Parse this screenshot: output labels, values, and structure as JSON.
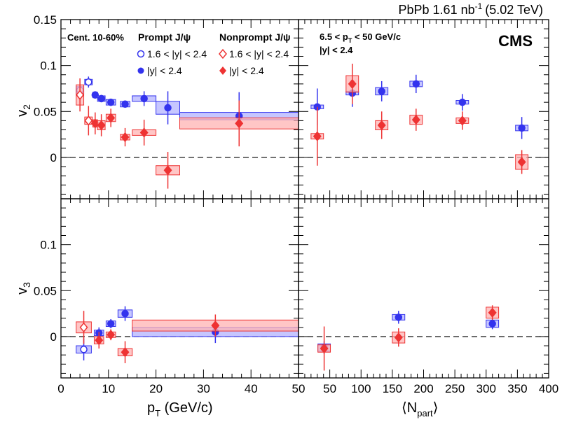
{
  "header": {
    "collision": "PbPb 1.61 nb",
    "lumi_exp": "-1",
    "energy": "(5.02 TeV)"
  },
  "experiment": "CMS",
  "legend": {
    "centrality": "Cent. 10-60%",
    "prompt_title": "Prompt J/ψ",
    "nonprompt_title": "Nonprompt J/ψ",
    "forward_label": "1.6 < |y| < 2.4",
    "full_label": "|y| < 2.4"
  },
  "right_cuts": {
    "pt_line_pre": "6.5 < p",
    "pt_sub": "T",
    "pt_line_post": " < 50 GeV/c",
    "y_line": "|y| < 2.4"
  },
  "axis_labels": {
    "v2_main": "v",
    "v2_sub": "2",
    "v3_main": "v",
    "v3_sub": "3",
    "pt_main": "p",
    "pt_sub": "T",
    "pt_rest": " (GeV/c)",
    "npart_left": "⟨N",
    "npart_sub": "part",
    "npart_right": "⟩"
  },
  "colors": {
    "prompt": "#3333ee",
    "nonprompt": "#ee3333",
    "prompt_fill": "#b3b3ff",
    "nonprompt_fill": "#ffb3b3"
  },
  "chart_data": {
    "type": "scatter",
    "y_ranges": {
      "v2": [
        -0.045,
        0.15
      ],
      "v3": [
        -0.045,
        0.15
      ]
    },
    "y_ticks": [
      0,
      0.05,
      0.1,
      0.15
    ],
    "y_tick_labels": [
      "0",
      "0.05",
      "0.1",
      "0.15"
    ],
    "x_ranges": {
      "pt": [
        0,
        50
      ],
      "npart": [
        0,
        400
      ]
    },
    "x_ticks_pt": [
      0,
      10,
      20,
      30,
      40,
      50
    ],
    "x_ticks_pt_labels": [
      "0",
      "10",
      "20",
      "30",
      "40",
      "50"
    ],
    "x_ticks_npart": [
      50,
      100,
      150,
      200,
      250,
      300,
      350,
      400
    ],
    "x_ticks_npart_labels": [
      "50",
      "100",
      "150",
      "200",
      "250",
      "300",
      "350",
      "400"
    ],
    "panels": [
      {
        "id": "v2-pt",
        "xaxis": "pt",
        "yaxis": "v2",
        "series": [
          {
            "name": "Prompt J/ψ 1.6<|y|<2.4",
            "marker": "circle-open",
            "color": "prompt",
            "points": [
              {
                "x": 4,
                "y": 0.073,
                "err": 0.006,
                "sx": 0.8,
                "sy": 0.004
              },
              {
                "x": 5.8,
                "y": 0.082,
                "err": 0.006,
                "sx": 0.8,
                "sy": 0.003
              }
            ]
          },
          {
            "name": "Prompt J/ψ |y|<2.4",
            "marker": "circle",
            "color": "prompt",
            "points": [
              {
                "x": 7.2,
                "y": 0.068,
                "err": 0.004,
                "sx": 0.5,
                "sy": 0.003
              },
              {
                "x": 8.5,
                "y": 0.064,
                "err": 0.004,
                "sx": 0.8,
                "sy": 0.003
              },
              {
                "x": 10.5,
                "y": 0.06,
                "err": 0.004,
                "sx": 1.0,
                "sy": 0.003
              },
              {
                "x": 13.5,
                "y": 0.058,
                "err": 0.004,
                "sx": 1.0,
                "sy": 0.003
              },
              {
                "x": 17.5,
                "y": 0.064,
                "err": 0.008,
                "sx": 2.5,
                "sy": 0.003
              },
              {
                "x": 22.5,
                "y": 0.054,
                "err": 0.018,
                "sx": 2.5,
                "sy": 0.007
              },
              {
                "x": 37.5,
                "y": 0.045,
                "err": 0.026,
                "sx": 12.5,
                "sy": 0.004
              }
            ]
          },
          {
            "name": "Nonprompt J/ψ 1.6<|y|<2.4",
            "marker": "diamond-open",
            "color": "nonprompt",
            "points": [
              {
                "x": 4,
                "y": 0.068,
                "err": 0.018,
                "sx": 0.8,
                "sy": 0.011
              },
              {
                "x": 5.8,
                "y": 0.04,
                "err": 0.016,
                "sx": 0.8,
                "sy": 0.004
              }
            ]
          },
          {
            "name": "Nonprompt J/ψ |y|<2.4",
            "marker": "diamond",
            "color": "nonprompt",
            "points": [
              {
                "x": 7.2,
                "y": 0.037,
                "err": 0.012,
                "sx": 0.5,
                "sy": 0.004
              },
              {
                "x": 8.5,
                "y": 0.035,
                "err": 0.012,
                "sx": 0.8,
                "sy": 0.005
              },
              {
                "x": 10.5,
                "y": 0.043,
                "err": 0.01,
                "sx": 1.0,
                "sy": 0.004
              },
              {
                "x": 13.5,
                "y": 0.022,
                "err": 0.01,
                "sx": 1.0,
                "sy": 0.003
              },
              {
                "x": 17.5,
                "y": 0.027,
                "err": 0.014,
                "sx": 2.5,
                "sy": 0.003
              },
              {
                "x": 22.5,
                "y": -0.014,
                "err": 0.02,
                "sx": 2.5,
                "sy": 0.005
              },
              {
                "x": 37.5,
                "y": 0.037,
                "err": 0.025,
                "sx": 12.5,
                "sy": 0.006
              }
            ]
          }
        ]
      },
      {
        "id": "v2-npart",
        "xaxis": "npart",
        "yaxis": "v2",
        "series": [
          {
            "name": "Prompt J/ψ |y|<2.4",
            "marker": "circle",
            "color": "prompt",
            "points": [
              {
                "x": 30,
                "y": 0.055,
                "err": 0.02,
                "sx": 10,
                "sy": 0.002
              },
              {
                "x": 86,
                "y": 0.07,
                "err": 0.015,
                "sx": 10,
                "sy": 0.002
              },
              {
                "x": 133,
                "y": 0.072,
                "err": 0.011,
                "sx": 10,
                "sy": 0.004
              },
              {
                "x": 188,
                "y": 0.08,
                "err": 0.01,
                "sx": 10,
                "sy": 0.003
              },
              {
                "x": 262,
                "y": 0.06,
                "err": 0.009,
                "sx": 10,
                "sy": 0.002
              },
              {
                "x": 357,
                "y": 0.032,
                "err": 0.012,
                "sx": 10,
                "sy": 0.003
              }
            ]
          },
          {
            "name": "Nonprompt J/ψ |y|<2.4",
            "marker": "diamond",
            "color": "nonprompt",
            "points": [
              {
                "x": 30,
                "y": 0.023,
                "err": 0.032,
                "sx": 10,
                "sy": 0.003
              },
              {
                "x": 86,
                "y": 0.08,
                "err": 0.022,
                "sx": 10,
                "sy": 0.009
              },
              {
                "x": 133,
                "y": 0.035,
                "err": 0.015,
                "sx": 10,
                "sy": 0.005
              },
              {
                "x": 188,
                "y": 0.041,
                "err": 0.012,
                "sx": 10,
                "sy": 0.005
              },
              {
                "x": 262,
                "y": 0.04,
                "err": 0.01,
                "sx": 10,
                "sy": 0.003
              },
              {
                "x": 357,
                "y": -0.005,
                "err": 0.013,
                "sx": 10,
                "sy": 0.008
              }
            ]
          }
        ]
      },
      {
        "id": "v3-pt",
        "xaxis": "pt",
        "yaxis": "v3",
        "series": [
          {
            "name": "Prompt J/ψ 1.6<|y|<2.4",
            "marker": "circle-open",
            "color": "prompt",
            "points": [
              {
                "x": 4.8,
                "y": -0.014,
                "err": 0.012,
                "sx": 1.6,
                "sy": 0.004
              }
            ]
          },
          {
            "name": "Prompt J/ψ |y|<2.4",
            "marker": "circle",
            "color": "prompt",
            "points": [
              {
                "x": 8,
                "y": 0.004,
                "err": 0.006,
                "sx": 1.0,
                "sy": 0.003
              },
              {
                "x": 10.5,
                "y": 0.014,
                "err": 0.005,
                "sx": 1.0,
                "sy": 0.003
              },
              {
                "x": 13.5,
                "y": 0.025,
                "err": 0.008,
                "sx": 1.5,
                "sy": 0.004
              },
              {
                "x": 32.5,
                "y": 0.005,
                "err": 0.012,
                "sx": 17.5,
                "sy": 0.005
              }
            ]
          },
          {
            "name": "Nonprompt J/ψ 1.6<|y|<2.4",
            "marker": "diamond-open",
            "color": "nonprompt",
            "points": [
              {
                "x": 4.8,
                "y": 0.01,
                "err": 0.018,
                "sx": 1.6,
                "sy": 0.006
              }
            ]
          },
          {
            "name": "Nonprompt J/ψ |y|<2.4",
            "marker": "diamond",
            "color": "nonprompt",
            "points": [
              {
                "x": 8,
                "y": -0.004,
                "err": 0.009,
                "sx": 1.0,
                "sy": 0.004
              },
              {
                "x": 10.5,
                "y": 0.002,
                "err": 0.006,
                "sx": 1.0,
                "sy": 0.003
              },
              {
                "x": 13.5,
                "y": -0.017,
                "err": 0.012,
                "sx": 1.5,
                "sy": 0.004
              },
              {
                "x": 32.5,
                "y": 0.012,
                "err": 0.012,
                "sx": 17.5,
                "sy": 0.006
              }
            ]
          }
        ]
      },
      {
        "id": "v3-npart",
        "xaxis": "npart",
        "yaxis": "v3",
        "series": [
          {
            "name": "Prompt J/ψ |y|<2.4",
            "marker": "circle",
            "color": "prompt",
            "points": [
              {
                "x": 41,
                "y": -0.012,
                "err": 0.007,
                "sx": 10,
                "sy": 0.004
              },
              {
                "x": 160,
                "y": 0.021,
                "err": 0.007,
                "sx": 10,
                "sy": 0.003
              },
              {
                "x": 310,
                "y": 0.014,
                "err": 0.006,
                "sx": 10,
                "sy": 0.004
              }
            ]
          },
          {
            "name": "Nonprompt J/ψ |y|<2.4",
            "marker": "diamond",
            "color": "nonprompt",
            "points": [
              {
                "x": 41,
                "y": -0.013,
                "err": 0.024,
                "sx": 10,
                "sy": 0.004
              },
              {
                "x": 160,
                "y": -0.001,
                "err": 0.01,
                "sx": 10,
                "sy": 0.006
              },
              {
                "x": 310,
                "y": 0.026,
                "err": 0.008,
                "sx": 10,
                "sy": 0.006
              }
            ]
          }
        ]
      }
    ]
  }
}
